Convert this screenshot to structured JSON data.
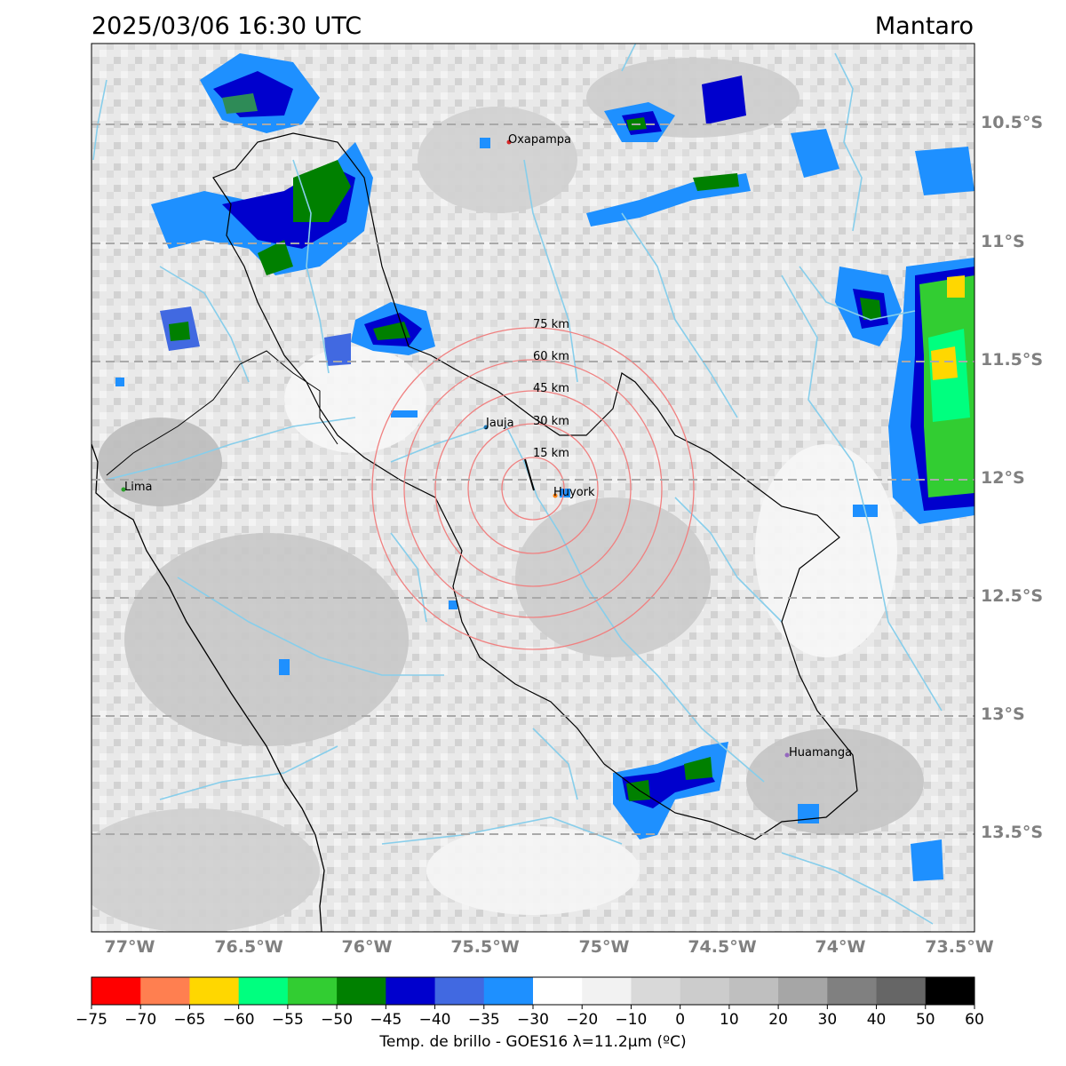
{
  "header": {
    "datetime": "2025/03/06 16:30 UTC",
    "region": "Mantaro"
  },
  "map": {
    "lat_labels": [
      "10.5°S",
      "11°S",
      "11.5°S",
      "12°S",
      "12.5°S",
      "13°S",
      "13.5°S"
    ],
    "lon_labels": [
      "77°W",
      "76.5°W",
      "76°W",
      "75.5°W",
      "75°W",
      "74.5°W",
      "74°W",
      "73.5°W"
    ],
    "cities": [
      {
        "name": "Oxapampa",
        "color": "#d62728"
      },
      {
        "name": "Jauja",
        "color": "#1f77b4"
      },
      {
        "name": "Huyork",
        "color": "#ff7f0e"
      },
      {
        "name": "Lima",
        "color": "#2ca02c"
      },
      {
        "name": "Huamanga",
        "color": "#9467bd"
      }
    ],
    "ring_labels": [
      "75 km",
      "60 km",
      "45 km",
      "30 km",
      "15 km"
    ],
    "ring_color": "#f08080",
    "river_color": "#87ceeb"
  },
  "colorbar": {
    "title": "Temp. de brillo - GOES16 λ=11.2μm (ºC)",
    "ticks": [
      "−75",
      "−70",
      "−65",
      "−60",
      "−55",
      "−50",
      "−45",
      "−40",
      "−35",
      "−30",
      "−20",
      "−10",
      "0",
      "10",
      "20",
      "30",
      "40",
      "50",
      "60"
    ],
    "colors": [
      "#ff0000",
      "#ff7f50",
      "#ffd700",
      "#00ff7f",
      "#32cd32",
      "#008000",
      "#0000cd",
      "#4169e1",
      "#1e90ff",
      "#ffffff",
      "#f2f2f2",
      "#d9d9d9",
      "#cccccc",
      "#bfbfbf",
      "#a6a6a6",
      "#808080",
      "#666666",
      "#000000"
    ]
  }
}
